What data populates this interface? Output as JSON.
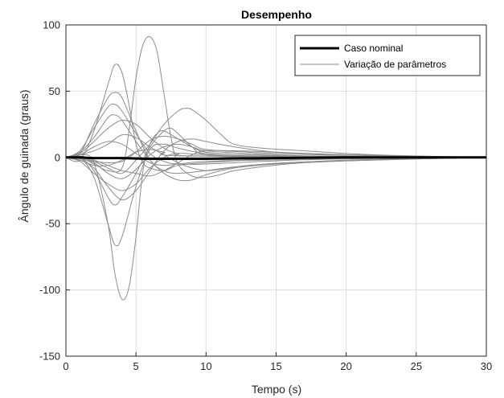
{
  "chart_data": {
    "type": "line",
    "title": "Desempenho",
    "xlabel": "Tempo (s)",
    "ylabel": "Ângulo de guinada (graus)",
    "xlim": [
      0,
      30
    ],
    "ylim": [
      -150,
      100
    ],
    "xticks": [
      0,
      5,
      10,
      15,
      20,
      25,
      30
    ],
    "yticks": [
      -150,
      -100,
      -50,
      0,
      50,
      100
    ],
    "xtick_labels": [
      "0",
      "5",
      "10",
      "15",
      "20",
      "25",
      "30"
    ],
    "ytick_labels": [
      "-150",
      "-100",
      "-50",
      "0",
      "50",
      "100"
    ],
    "grid": true,
    "legend": {
      "position": "top-right",
      "entries": [
        {
          "label": "Caso nominal",
          "color": "#000000"
        },
        {
          "label": "Variação de parâmetros",
          "color": "#8c8c8c"
        }
      ]
    },
    "series": [
      {
        "name": "Caso nominal",
        "color": "#000000",
        "kind": "nominal",
        "points": [
          [
            0,
            0
          ],
          [
            1,
            0
          ],
          [
            2,
            -0.5
          ],
          [
            4,
            -0.5
          ],
          [
            6,
            -1
          ],
          [
            10,
            -1
          ],
          [
            15,
            -0.5
          ],
          [
            20,
            0
          ],
          [
            25,
            0
          ],
          [
            30,
            0
          ]
        ]
      },
      {
        "color": "#8c8c8c",
        "kind": "variation",
        "points": [
          [
            0,
            0
          ],
          [
            1,
            -2
          ],
          [
            2,
            20
          ],
          [
            3,
            55
          ],
          [
            3.5,
            70
          ],
          [
            4,
            64
          ],
          [
            4.5,
            40
          ],
          [
            5,
            10
          ],
          [
            5.5,
            -4
          ],
          [
            6,
            -8
          ],
          [
            7,
            -10
          ],
          [
            8,
            -6
          ],
          [
            10,
            -4
          ],
          [
            13,
            -2
          ],
          [
            18,
            0
          ],
          [
            30,
            0
          ]
        ]
      },
      {
        "color": "#8c8c8c",
        "kind": "variation",
        "points": [
          [
            0,
            0
          ],
          [
            1,
            2
          ],
          [
            2,
            -4
          ],
          [
            3,
            -50
          ],
          [
            3.5,
            -88
          ],
          [
            4,
            -107
          ],
          [
            4.5,
            -98
          ],
          [
            5,
            -60
          ],
          [
            5.5,
            -10
          ],
          [
            6,
            10
          ],
          [
            6.5,
            18
          ],
          [
            7,
            20
          ],
          [
            8,
            14
          ],
          [
            9,
            8
          ],
          [
            10,
            4
          ],
          [
            13,
            2
          ],
          [
            18,
            1
          ],
          [
            30,
            0
          ]
        ]
      },
      {
        "color": "#8c8c8c",
        "kind": "variation",
        "points": [
          [
            0,
            0
          ],
          [
            1,
            0
          ],
          [
            2,
            -5
          ],
          [
            3,
            -10
          ],
          [
            4,
            -8
          ],
          [
            4.5,
            20
          ],
          [
            5,
            60
          ],
          [
            5.5,
            85
          ],
          [
            6,
            91
          ],
          [
            6.5,
            80
          ],
          [
            7,
            48
          ],
          [
            7.5,
            15
          ],
          [
            8,
            -5
          ],
          [
            9,
            -14
          ],
          [
            10,
            -15
          ],
          [
            11,
            -13
          ],
          [
            12,
            -10
          ],
          [
            14,
            -7
          ],
          [
            17,
            -4
          ],
          [
            22,
            -2
          ],
          [
            30,
            0
          ]
        ]
      },
      {
        "color": "#8c8c8c",
        "kind": "variation",
        "points": [
          [
            0,
            0
          ],
          [
            1,
            0
          ],
          [
            2,
            -15
          ],
          [
            3,
            -50
          ],
          [
            3.5,
            -66
          ],
          [
            4,
            -60
          ],
          [
            5,
            -22
          ],
          [
            6,
            6
          ],
          [
            7,
            10
          ],
          [
            8,
            7
          ],
          [
            10,
            3
          ],
          [
            14,
            1
          ],
          [
            30,
            0
          ]
        ]
      },
      {
        "color": "#8c8c8c",
        "kind": "variation",
        "points": [
          [
            0,
            0
          ],
          [
            1,
            3
          ],
          [
            2,
            25
          ],
          [
            3,
            45
          ],
          [
            3.5,
            49
          ],
          [
            4,
            45
          ],
          [
            5,
            20
          ],
          [
            6,
            -2
          ],
          [
            7,
            -10
          ],
          [
            8,
            -12
          ],
          [
            10,
            -10
          ],
          [
            13,
            -6
          ],
          [
            18,
            -3
          ],
          [
            30,
            0
          ]
        ]
      },
      {
        "color": "#8c8c8c",
        "kind": "variation",
        "points": [
          [
            0,
            0
          ],
          [
            1,
            0
          ],
          [
            2,
            -10
          ],
          [
            3,
            -30
          ],
          [
            3.5,
            -36
          ],
          [
            4,
            -30
          ],
          [
            5,
            -12
          ],
          [
            6,
            8
          ],
          [
            7,
            20
          ],
          [
            7.5,
            22
          ],
          [
            8,
            18
          ],
          [
            9,
            8
          ],
          [
            10,
            2
          ],
          [
            14,
            0
          ],
          [
            30,
            0
          ]
        ]
      },
      {
        "color": "#8c8c8c",
        "kind": "variation",
        "points": [
          [
            0,
            0
          ],
          [
            1,
            0
          ],
          [
            2,
            -3
          ],
          [
            3,
            -8
          ],
          [
            4,
            -12
          ],
          [
            5,
            -2
          ],
          [
            6,
            10
          ],
          [
            7,
            25
          ],
          [
            8,
            35
          ],
          [
            8.5,
            37
          ],
          [
            9,
            36
          ],
          [
            10,
            28
          ],
          [
            11,
            18
          ],
          [
            12,
            10
          ],
          [
            14,
            7
          ],
          [
            17,
            5
          ],
          [
            22,
            2
          ],
          [
            30,
            0
          ]
        ]
      },
      {
        "color": "#8c8c8c",
        "kind": "variation",
        "points": [
          [
            0,
            0
          ],
          [
            1,
            5
          ],
          [
            2,
            22
          ],
          [
            3,
            38
          ],
          [
            3.5,
            40
          ],
          [
            4,
            35
          ],
          [
            5,
            18
          ],
          [
            6,
            3
          ],
          [
            7,
            -3
          ],
          [
            8,
            -5
          ],
          [
            10,
            -5
          ],
          [
            14,
            -3
          ],
          [
            20,
            -1
          ],
          [
            30,
            0
          ]
        ]
      },
      {
        "color": "#8c8c8c",
        "kind": "variation",
        "points": [
          [
            0,
            0
          ],
          [
            1,
            3
          ],
          [
            2,
            12
          ],
          [
            3,
            22
          ],
          [
            4,
            28
          ],
          [
            5,
            25
          ],
          [
            6,
            15
          ],
          [
            7,
            7
          ],
          [
            8,
            3
          ],
          [
            10,
            1
          ],
          [
            30,
            0
          ]
        ]
      },
      {
        "color": "#8c8c8c",
        "kind": "variation",
        "points": [
          [
            0,
            0
          ],
          [
            1,
            -3
          ],
          [
            2,
            -12
          ],
          [
            3,
            -20
          ],
          [
            4,
            -25
          ],
          [
            5,
            -20
          ],
          [
            6,
            -8
          ],
          [
            7,
            0
          ],
          [
            8,
            3
          ],
          [
            10,
            2
          ],
          [
            14,
            1
          ],
          [
            30,
            0
          ]
        ]
      },
      {
        "color": "#8c8c8c",
        "kind": "variation",
        "points": [
          [
            0,
            0
          ],
          [
            1,
            4
          ],
          [
            2,
            15
          ],
          [
            3,
            30
          ],
          [
            3.5,
            32
          ],
          [
            4,
            28
          ],
          [
            5,
            12
          ],
          [
            6,
            -2
          ],
          [
            7,
            -12
          ],
          [
            8,
            -17
          ],
          [
            9,
            -17
          ],
          [
            10,
            -13
          ],
          [
            12,
            -8
          ],
          [
            15,
            -5
          ],
          [
            20,
            -2
          ],
          [
            30,
            0
          ]
        ]
      },
      {
        "color": "#8c8c8c",
        "kind": "variation",
        "points": [
          [
            0,
            0
          ],
          [
            1,
            -2
          ],
          [
            2,
            -8
          ],
          [
            3,
            -22
          ],
          [
            4,
            -32
          ],
          [
            5,
            -25
          ],
          [
            6,
            -10
          ],
          [
            7,
            5
          ],
          [
            8,
            12
          ],
          [
            9,
            14
          ],
          [
            10,
            12
          ],
          [
            12,
            8
          ],
          [
            15,
            4
          ],
          [
            20,
            2
          ],
          [
            30,
            0
          ]
        ]
      },
      {
        "color": "#8c8c8c",
        "kind": "variation",
        "points": [
          [
            0,
            0
          ],
          [
            1,
            2
          ],
          [
            2,
            5
          ],
          [
            3,
            10
          ],
          [
            4,
            17
          ],
          [
            5,
            15
          ],
          [
            6,
            8
          ],
          [
            7,
            2
          ],
          [
            8,
            -4
          ],
          [
            9,
            -8
          ],
          [
            10,
            -10
          ],
          [
            11,
            -9
          ],
          [
            13,
            -6
          ],
          [
            16,
            -4
          ],
          [
            21,
            -2
          ],
          [
            30,
            0
          ]
        ]
      },
      {
        "color": "#8c8c8c",
        "kind": "variation",
        "points": [
          [
            0,
            0
          ],
          [
            1,
            -1
          ],
          [
            2,
            -3
          ],
          [
            3,
            -4
          ],
          [
            4,
            -3
          ],
          [
            5,
            4
          ],
          [
            6,
            13
          ],
          [
            7,
            16
          ],
          [
            8,
            14
          ],
          [
            9,
            10
          ],
          [
            10,
            6
          ],
          [
            13,
            4
          ],
          [
            18,
            2
          ],
          [
            30,
            0
          ]
        ]
      },
      {
        "color": "#8c8c8c",
        "kind": "variation",
        "points": [
          [
            0,
            0
          ],
          [
            1,
            1
          ],
          [
            2,
            -2
          ],
          [
            3,
            -6
          ],
          [
            4,
            -10
          ],
          [
            5,
            -12
          ],
          [
            6,
            -14
          ],
          [
            7,
            -10
          ],
          [
            8,
            -4
          ],
          [
            9,
            2
          ],
          [
            10,
            5
          ],
          [
            12,
            5
          ],
          [
            15,
            4
          ],
          [
            20,
            2
          ],
          [
            30,
            0
          ]
        ]
      },
      {
        "color": "#8c8c8c",
        "kind": "variation",
        "points": [
          [
            0,
            0
          ],
          [
            1,
            2
          ],
          [
            2,
            8
          ],
          [
            3,
            12
          ],
          [
            4,
            10
          ],
          [
            5,
            3
          ],
          [
            6,
            -4
          ],
          [
            7,
            -6
          ],
          [
            8,
            -5
          ],
          [
            10,
            -3
          ],
          [
            14,
            -2
          ],
          [
            20,
            -1
          ],
          [
            30,
            0
          ]
        ]
      },
      {
        "color": "#8c8c8c",
        "kind": "variation",
        "points": [
          [
            0,
            0
          ],
          [
            1,
            -2
          ],
          [
            2,
            -6
          ],
          [
            3,
            -6
          ],
          [
            4,
            -2
          ],
          [
            5,
            4
          ],
          [
            6,
            6
          ],
          [
            7,
            4
          ],
          [
            9,
            1
          ],
          [
            30,
            0
          ]
        ]
      },
      {
        "color": "#8c8c8c",
        "kind": "variation",
        "points": [
          [
            0,
            0
          ],
          [
            1,
            -1
          ],
          [
            2,
            -4
          ],
          [
            3,
            -12
          ],
          [
            4,
            -16
          ],
          [
            5,
            -9
          ],
          [
            6,
            2
          ],
          [
            7,
            8
          ],
          [
            8,
            10
          ],
          [
            9,
            8
          ],
          [
            10,
            5
          ],
          [
            13,
            3
          ],
          [
            18,
            1
          ],
          [
            30,
            0
          ]
        ]
      }
    ]
  }
}
